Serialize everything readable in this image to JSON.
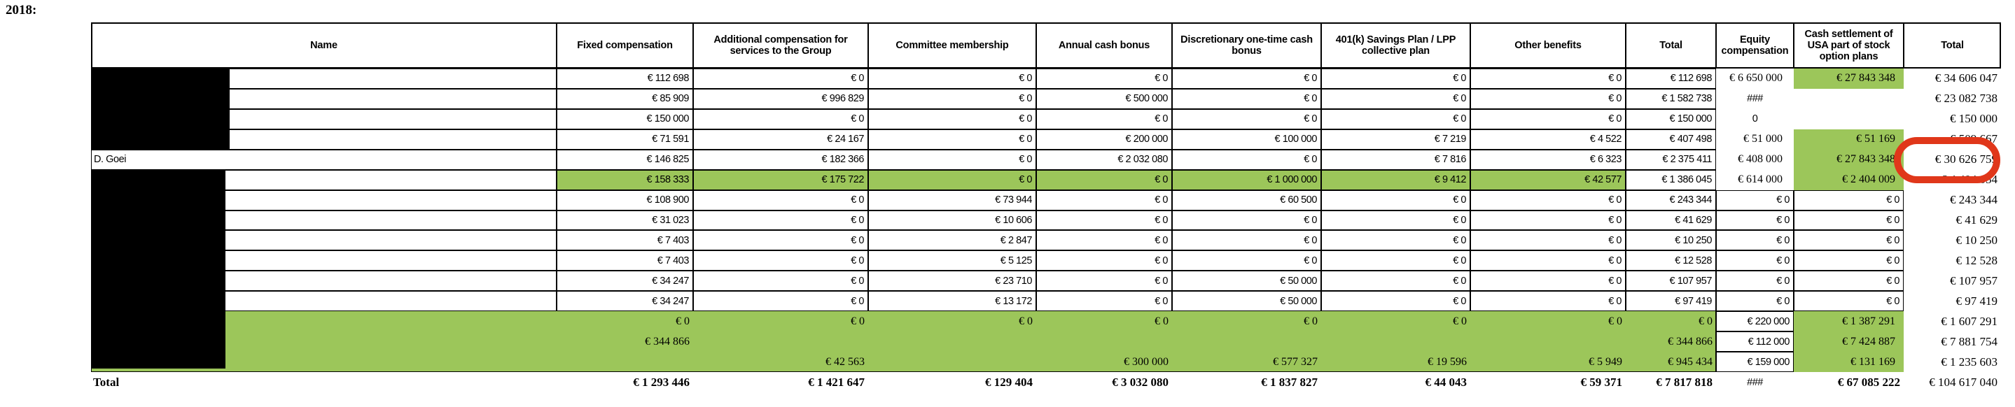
{
  "page": {
    "year_label": "2018:"
  },
  "colors": {
    "highlight_green": "#9CC65A",
    "annotation_red": "#E0371A",
    "redaction_black": "#000000"
  },
  "table": {
    "columns": [
      "Name",
      "Fixed compensation",
      "Additional compensation for services to the Group",
      "Committee membership",
      "Annual cash bonus",
      "Discretionary one-time cash bonus",
      "401(k) Savings Plan / LPP collective plan",
      "Other benefits",
      "Total",
      "Equity compensation",
      "Cash settlement of USA part of stock option plans",
      "Total"
    ],
    "rows": [
      {
        "name": "",
        "redacted": true,
        "values": [
          "€ 112 698",
          "€ 0",
          "€ 0",
          "€ 0",
          "€ 0",
          "€ 0",
          "€ 0",
          "€ 112 698",
          "€ 6 650 000",
          "€ 27 843 348",
          "€ 34 606 047"
        ]
      },
      {
        "name": "",
        "redacted": true,
        "values": [
          "€ 85 909",
          "€ 996 829",
          "€ 0",
          "€ 500 000",
          "€ 0",
          "€ 0",
          "€ 0",
          "€ 1 582 738",
          "###",
          "",
          "€ 23 082 738"
        ]
      },
      {
        "name": "",
        "redacted": true,
        "values": [
          "€ 150 000",
          "€ 0",
          "€ 0",
          "€ 0",
          "€ 0",
          "€ 0",
          "€ 0",
          "€ 150 000",
          "0",
          "",
          "€ 150 000"
        ]
      },
      {
        "name": "",
        "redacted": true,
        "values": [
          "€ 71 591",
          "€ 24 167",
          "€ 0",
          "€ 200 000",
          "€ 100 000",
          "€ 7 219",
          "€ 4 522",
          "€ 407 498",
          "€ 51 000",
          "€ 51 169",
          "€ 509 667"
        ]
      },
      {
        "name": "D. Goei",
        "redacted": false,
        "values": [
          "€ 146 825",
          "€ 182 366",
          "€ 0",
          "€ 2 032 080",
          "€ 0",
          "€ 7 816",
          "€ 6 323",
          "€ 2 375 411",
          "€ 408 000",
          "€ 27 843 348",
          "€ 30 626 759"
        ]
      },
      {
        "name": "",
        "redacted": true,
        "values": [
          "€ 158 333",
          "€ 175 722",
          "€ 0",
          "€ 0",
          "€ 1 000 000",
          "€ 9 412",
          "€ 42 577",
          "€ 1 386 045",
          "€ 614 000",
          "€ 2 404 009",
          "€ 4 404 054"
        ]
      },
      {
        "name": "",
        "redacted": true,
        "values": [
          "€ 108 900",
          "€ 0",
          "€ 73 944",
          "€ 0",
          "€ 60 500",
          "€ 0",
          "€ 0",
          "€ 243 344",
          "€ 0",
          "€ 0",
          "€ 243 344"
        ]
      },
      {
        "name": "",
        "redacted": true,
        "values": [
          "€ 31 023",
          "€ 0",
          "€ 10 606",
          "€ 0",
          "€ 0",
          "€ 0",
          "€ 0",
          "€ 41 629",
          "€ 0",
          "€ 0",
          "€ 41 629"
        ]
      },
      {
        "name": "",
        "redacted": true,
        "values": [
          "€ 7 403",
          "€ 0",
          "€ 2 847",
          "€ 0",
          "€ 0",
          "€ 0",
          "€ 0",
          "€ 10 250",
          "€ 0",
          "€ 0",
          "€ 10 250"
        ]
      },
      {
        "name": "",
        "redacted": true,
        "values": [
          "€ 7 403",
          "€ 0",
          "€ 5 125",
          "€ 0",
          "€ 0",
          "€ 0",
          "€ 0",
          "€ 12 528",
          "€ 0",
          "€ 0",
          "€ 12 528"
        ]
      },
      {
        "name": "",
        "redacted": true,
        "values": [
          "€ 34 247",
          "€ 0",
          "€ 23 710",
          "€ 0",
          "€ 50 000",
          "€ 0",
          "€ 0",
          "€ 107 957",
          "€ 0",
          "€ 0",
          "€ 107 957"
        ]
      },
      {
        "name": "",
        "redacted": true,
        "values": [
          "€ 34 247",
          "€ 0",
          "€ 13 172",
          "€ 0",
          "€ 50 000",
          "€ 0",
          "€ 0",
          "€ 97 419",
          "€ 0",
          "€ 0",
          "€ 97 419"
        ]
      },
      {
        "name": "",
        "redacted": true,
        "values": [
          "€ 0",
          "€ 0",
          "€ 0",
          "€ 0",
          "€ 0",
          "€ 0",
          "€ 0",
          "€ 0",
          "€ 220 000",
          "€ 1 387 291",
          "€ 1 607 291"
        ]
      },
      {
        "name": "",
        "redacted": true,
        "values": [
          "€ 344 866",
          "",
          "",
          "",
          "",
          "",
          "",
          "€ 344 866",
          "€ 112 000",
          "€ 7 424 887",
          "€ 7 881 754"
        ]
      },
      {
        "name": "",
        "redacted": true,
        "values": [
          "",
          "€ 42 563",
          "",
          "€ 300 000",
          "€ 577 327",
          "€ 19 596",
          "€ 5 949",
          "€ 945 434",
          "€ 159 000",
          "€ 131 169",
          "€ 1 235 603"
        ]
      }
    ],
    "total_row": {
      "label": "Total",
      "values": [
        "€ 1 293 446",
        "€ 1 421 647",
        "€ 129 404",
        "€ 3 032 080",
        "€ 1 837 827",
        "€ 44 043",
        "€ 59 371",
        "€ 7 817 818",
        "###",
        "€ 67 085 222",
        "€ 104 617 040"
      ]
    },
    "highlighted_cells": {
      "1": [
        9
      ],
      "4": [
        9
      ],
      "5": [
        9
      ],
      "6": [
        0,
        1,
        2,
        3,
        4,
        5,
        6,
        9
      ],
      "13": [
        9
      ],
      "14": [
        9
      ],
      "15": [
        9
      ]
    },
    "highlight_block": {
      "first_row": 13,
      "last_row": 15
    },
    "annotation": {
      "shape": "red-rounded-circle",
      "around_value": "€ 30 626 759",
      "row_name": "D. Goei",
      "column": "Total"
    }
  }
}
